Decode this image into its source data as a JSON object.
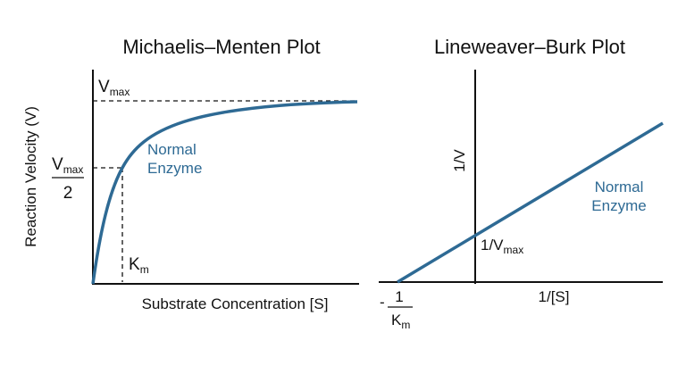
{
  "left_plot": {
    "title": "Michaelis–Menten Plot",
    "y_label": "Reaction Velocity (V)",
    "x_label": "Substrate Concentration [S]",
    "vmax": {
      "main": "V",
      "sub": "max"
    },
    "half_vmax": {
      "numerator": {
        "main": "V",
        "sub": "max"
      },
      "denominator": "2"
    },
    "km": {
      "main": "K",
      "sub": "m"
    },
    "curve_label": [
      "Normal",
      "Enzyme"
    ]
  },
  "right_plot": {
    "title": "Lineweaver–Burk Plot",
    "y_label": "1/V",
    "x_label": "1/[S]",
    "y_intercept": {
      "main": "1/V",
      "sub": "max"
    },
    "x_intercept": {
      "sign": "-",
      "numerator": "1",
      "denominator": {
        "main": "K",
        "sub": "m"
      }
    },
    "line_label": [
      "Normal",
      "Enzyme"
    ]
  }
}
